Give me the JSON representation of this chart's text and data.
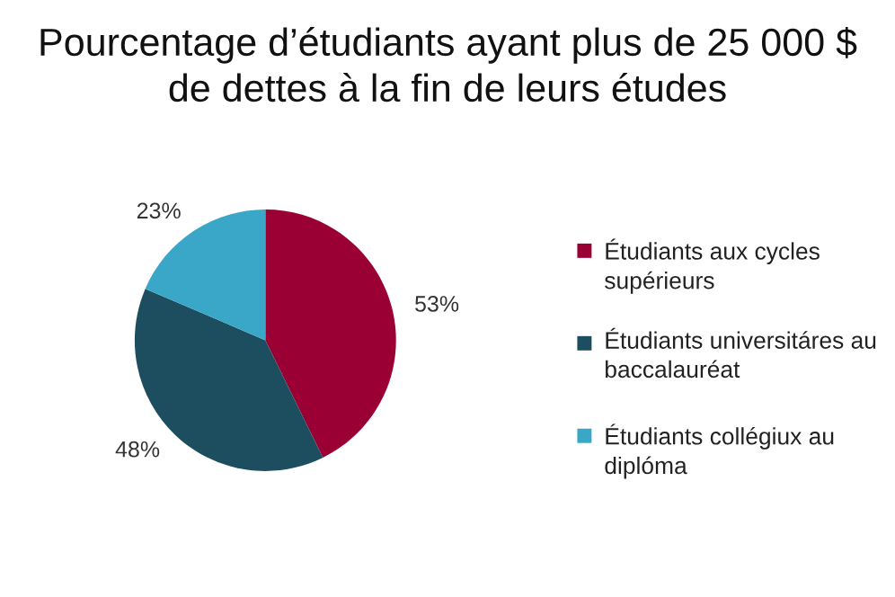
{
  "chart_data": {
    "type": "pie",
    "title": "Pourcentage d’étudiants ayant plus de 25 000 $\nde dettes à la fin de leurs études",
    "categories": [
      "Étudiants aux cycles supérieurs",
      "Étudiants universitáres au baccalauréat",
      "Étudiants collégiux au diplóma"
    ],
    "values": [
      53,
      48,
      23
    ],
    "colors": [
      "#9b0034",
      "#1d4e5f",
      "#3aa6c8"
    ],
    "value_labels": [
      "53%",
      "48%",
      "23%"
    ],
    "legend": "right"
  }
}
